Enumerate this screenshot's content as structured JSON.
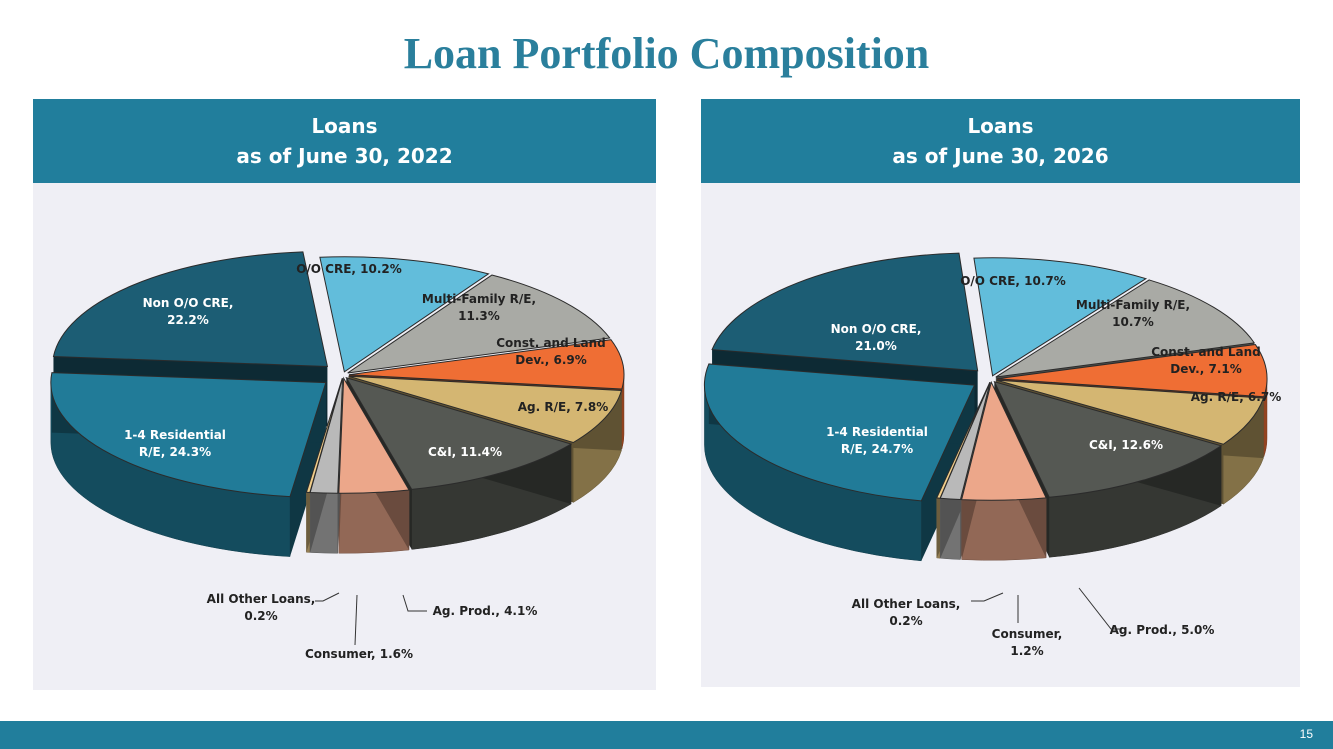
{
  "page": {
    "title": "Loan Portfolio Composition",
    "page_number": "15"
  },
  "colors": {
    "res14": "#217b98",
    "non_oo_cre": "#1c5d74",
    "oo_cre": "#62bddb",
    "multifamily": "#a9aaa5",
    "const_land": "#ef6e34",
    "ag_re": "#d4b672",
    "ci": "#555853",
    "ag_prod": "#eca78a",
    "consumer": "#b9b9b9",
    "all_other": "#f1ce8a"
  },
  "chart_data": [
    {
      "type": "pie",
      "title_line1": "Loans",
      "title_line2": "as of June 30, 2022",
      "categories": [
        "O/O CRE",
        "Multi-Family R/E",
        "Const. and Land Dev.",
        "Ag. R/E",
        "C&I",
        "Ag. Prod.",
        "Consumer",
        "All Other Loans",
        "1-4 Residential R/E",
        "Non O/O CRE"
      ],
      "values": [
        10.2,
        11.3,
        6.9,
        7.8,
        11.4,
        4.1,
        1.6,
        0.2,
        24.3,
        22.2
      ],
      "labels": [
        [
          "O/O CRE, 10.2%"
        ],
        [
          "Multi-Family R/E,",
          "11.3%"
        ],
        [
          "Const. and Land",
          "Dev., 6.9%"
        ],
        [
          "Ag. R/E, 7.8%"
        ],
        [
          "C&I, 11.4%"
        ],
        [
          "Ag. Prod., 4.1%"
        ],
        [
          "Consumer, 1.6%"
        ],
        [
          "All Other Loans,",
          "0.2%"
        ],
        [
          "1-4 Residential",
          "R/E, 24.3%"
        ],
        [
          "Non O/O CRE,",
          "22.2%"
        ]
      ]
    },
    {
      "type": "pie",
      "title_line1": "Loans",
      "title_line2": "as of June 30, 2026",
      "categories": [
        "O/O CRE",
        "Multi-Family R/E",
        "Const. and Land Dev.",
        "Ag. R/E",
        "C&I",
        "Ag. Prod.",
        "Consumer",
        "All Other Loans",
        "1-4 Residential R/E",
        "Non O/O CRE"
      ],
      "values": [
        10.7,
        10.7,
        7.1,
        6.7,
        12.6,
        5.0,
        1.2,
        0.2,
        24.7,
        21.0
      ],
      "labels": [
        [
          "O/O CRE, 10.7%"
        ],
        [
          "Multi-Family R/E,",
          "10.7%"
        ],
        [
          "Const. and Land",
          "Dev., 7.1%"
        ],
        [
          "Ag. R/E, 6.7%"
        ],
        [
          "C&I, 12.6%"
        ],
        [
          "Ag. Prod., 5.0%"
        ],
        [
          "Consumer,",
          "1.2%"
        ],
        [
          "All Other Loans,",
          "0.2%"
        ],
        [
          "1-4 Residential",
          "R/E, 24.7%"
        ],
        [
          "Non O/O CRE,",
          "21.0%"
        ]
      ]
    }
  ]
}
